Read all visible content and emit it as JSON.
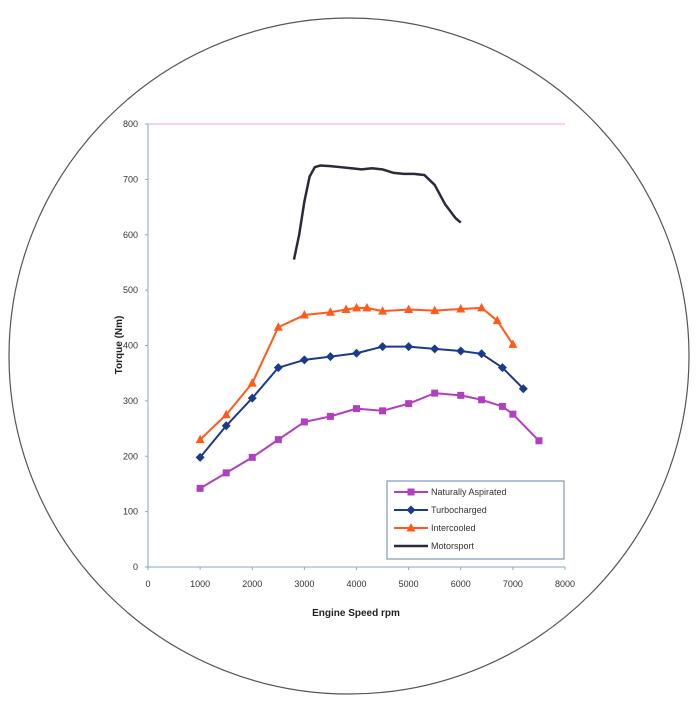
{
  "chart_data": {
    "type": "line",
    "title": "",
    "xlabel": "Engine Speed rpm",
    "ylabel": "Torque (Nm)",
    "xlim": [
      0,
      8000
    ],
    "ylim": [
      0,
      800
    ],
    "x_ticks": [
      0,
      1000,
      2000,
      3000,
      4000,
      5000,
      6000,
      7000,
      8000
    ],
    "x_tick_labels": [
      "0",
      "1000",
      "2000",
      "3000",
      "4000",
      "5000",
      "6000",
      "7000",
      "8000"
    ],
    "y_ticks": [
      0,
      100,
      200,
      300,
      400,
      500,
      600,
      700,
      800
    ],
    "y_tick_labels": [
      "0",
      "100",
      "200",
      "300",
      "400",
      "500",
      "600",
      "700",
      "800"
    ],
    "grid": false,
    "legend_position": "bottom-right",
    "series": [
      {
        "name": "Naturally Aspirated",
        "color": "#b040c0",
        "marker": "square",
        "x": [
          1000,
          1500,
          2000,
          2500,
          3000,
          3500,
          4000,
          4500,
          5000,
          5500,
          6000,
          6400,
          6800,
          7000,
          7500
        ],
        "y": [
          142,
          170,
          198,
          230,
          262,
          272,
          286,
          282,
          295,
          314,
          310,
          302,
          290,
          276,
          228
        ]
      },
      {
        "name": "Turbocharged",
        "color": "#1a3a8a",
        "marker": "diamond",
        "x": [
          1000,
          1500,
          2000,
          2500,
          3000,
          3500,
          4000,
          4500,
          5000,
          5500,
          6000,
          6400,
          6800,
          7200
        ],
        "y": [
          198,
          255,
          305,
          360,
          374,
          380,
          386,
          398,
          398,
          394,
          390,
          385,
          360,
          322
        ]
      },
      {
        "name": "Intercooled",
        "color": "#ff5a1a",
        "marker": "triangle",
        "x": [
          1000,
          1500,
          2000,
          2500,
          3000,
          3500,
          3800,
          4000,
          4200,
          4500,
          5000,
          5500,
          6000,
          6400,
          6700,
          7000
        ],
        "y": [
          230,
          275,
          332,
          433,
          455,
          460,
          465,
          468,
          468,
          462,
          465,
          463,
          466,
          468,
          445,
          402
        ]
      },
      {
        "name": "Motorsport",
        "color": "#2a2a3a",
        "marker": "none",
        "x": [
          2800,
          2900,
          3000,
          3100,
          3200,
          3300,
          3500,
          3700,
          3900,
          4100,
          4300,
          4500,
          4700,
          4900,
          5100,
          5300,
          5500,
          5700,
          5900,
          6000
        ],
        "y": [
          555,
          600,
          660,
          705,
          722,
          725,
          724,
          722,
          720,
          718,
          720,
          718,
          712,
          710,
          710,
          708,
          690,
          655,
          630,
          622
        ]
      }
    ]
  }
}
